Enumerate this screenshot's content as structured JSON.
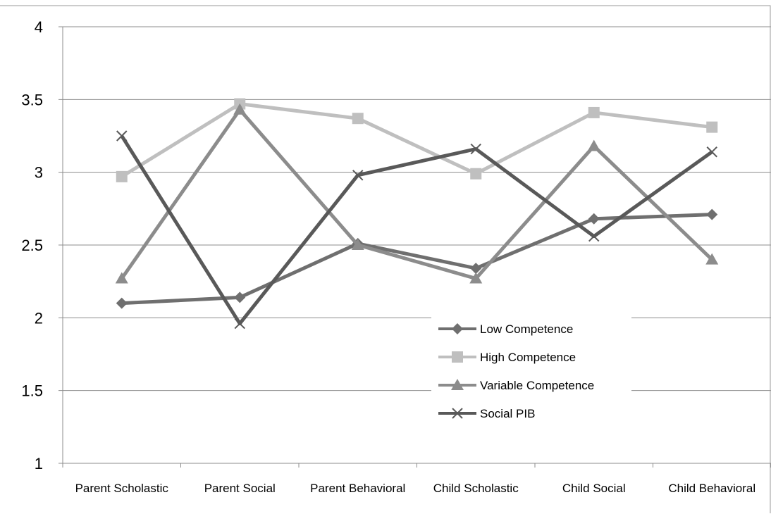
{
  "chart_data": {
    "type": "line",
    "title": "",
    "xlabel": "",
    "ylabel": "",
    "categories": [
      "Parent Scholastic",
      "Parent Social",
      "Parent Behavioral",
      "Child Scholastic",
      "Child Social",
      "Child Behavioral"
    ],
    "ylim": [
      1,
      4
    ],
    "yticks": [
      "1",
      "1.5",
      "2",
      "2.5",
      "3",
      "3.5",
      "4"
    ],
    "grid": true,
    "legend_position": "bottom-right",
    "series": [
      {
        "name": "Low Competence",
        "marker": "diamond",
        "color": "#6f6f6f",
        "values": [
          2.1,
          2.14,
          2.51,
          2.34,
          2.68,
          2.71
        ]
      },
      {
        "name": "High Competence",
        "marker": "square",
        "color": "#bfbfbf",
        "values": [
          2.97,
          3.47,
          3.37,
          2.99,
          3.41,
          3.31
        ]
      },
      {
        "name": "Variable Competence",
        "marker": "triangle",
        "color": "#8c8c8c",
        "values": [
          2.27,
          3.43,
          2.5,
          2.27,
          3.18,
          2.4
        ]
      },
      {
        "name": "Social PIB",
        "marker": "x",
        "color": "#595959",
        "values": [
          3.25,
          1.96,
          2.98,
          3.16,
          2.56,
          3.14
        ]
      }
    ]
  }
}
